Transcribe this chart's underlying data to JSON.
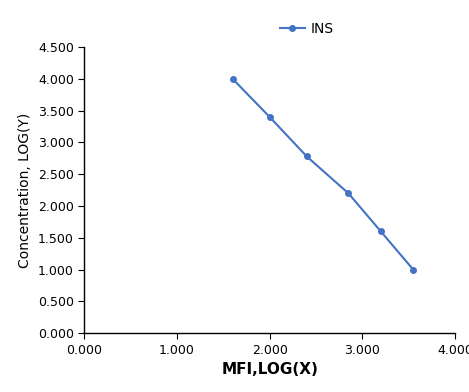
{
  "x": [
    1.6,
    2.0,
    2.4,
    2.85,
    3.2,
    3.55
  ],
  "y": [
    4.0,
    3.4,
    2.78,
    2.2,
    1.6,
    1.0
  ],
  "line_color": "#4472C4",
  "marker": "o",
  "marker_size": 4,
  "line_width": 1.5,
  "legend_label": "INS",
  "xlabel": "MFI,LOG(X)",
  "ylabel": "Concentration, LOG(Y)",
  "xlim": [
    0.0,
    4.0
  ],
  "ylim": [
    0.0,
    4.5
  ],
  "xticks": [
    0.0,
    1.0,
    2.0,
    3.0,
    4.0
  ],
  "yticks": [
    0.0,
    0.5,
    1.0,
    1.5,
    2.0,
    2.5,
    3.0,
    3.5,
    4.0,
    4.5
  ],
  "xlabel_fontsize": 11,
  "ylabel_fontsize": 10,
  "legend_fontsize": 10,
  "tick_fontsize": 9,
  "background_color": "#ffffff"
}
